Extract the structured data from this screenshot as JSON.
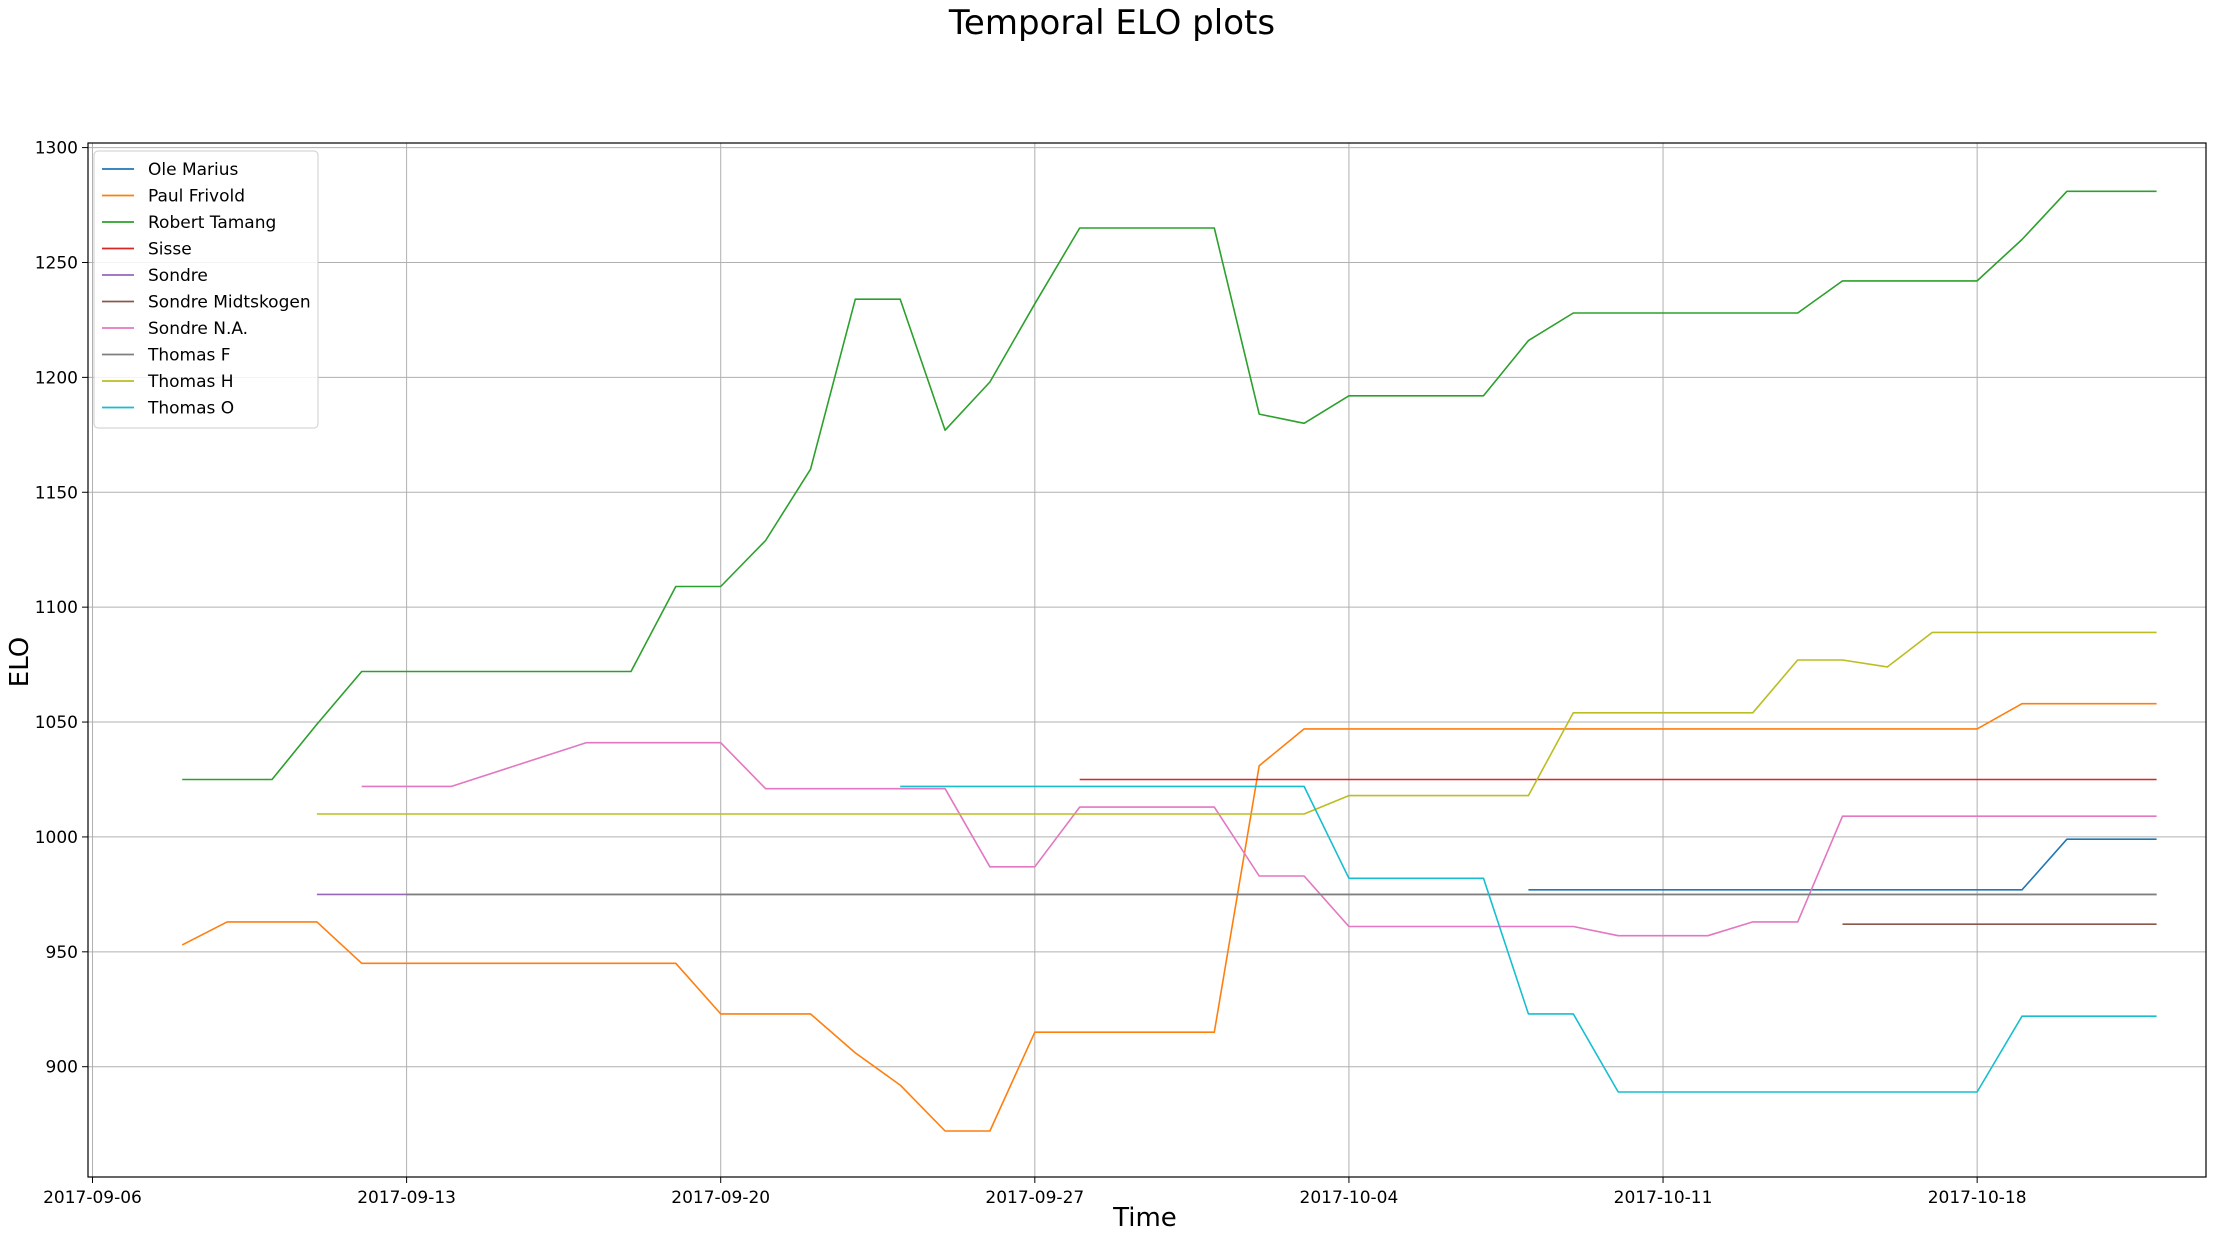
{
  "chart_data": {
    "type": "line",
    "title": "Temporal ELO plots",
    "xlabel": "Time",
    "ylabel": "ELO",
    "x_ticks": [
      "2017-09-06",
      "2017-09-13",
      "2017-09-20",
      "2017-09-27",
      "2017-10-04",
      "2017-10-11",
      "2017-10-18"
    ],
    "x_start": "2017-09-06",
    "xlim_days": [
      -0.1,
      47.1
    ],
    "y_ticks": [
      900,
      950,
      1000,
      1050,
      1100,
      1150,
      1200,
      1250,
      1300
    ],
    "ylim": [
      852,
      1302
    ],
    "grid": true,
    "legend_position": "top-left",
    "series": [
      {
        "name": "Ole Marius",
        "color": "#1f77b4",
        "points": [
          [
            32,
            977
          ],
          [
            43,
            977
          ],
          [
            44,
            999
          ],
          [
            45,
            999
          ],
          [
            46,
            999
          ]
        ]
      },
      {
        "name": "Paul Frivold",
        "color": "#ff7f0e",
        "points": [
          [
            2,
            953
          ],
          [
            3,
            963
          ],
          [
            5,
            963
          ],
          [
            6,
            945
          ],
          [
            13,
            945
          ],
          [
            14,
            923
          ],
          [
            16,
            923
          ],
          [
            17,
            906
          ],
          [
            18,
            892
          ],
          [
            19,
            872
          ],
          [
            20,
            872
          ],
          [
            21,
            915
          ],
          [
            25,
            915
          ],
          [
            26,
            1031
          ],
          [
            27,
            1047
          ],
          [
            41,
            1047
          ],
          [
            42,
            1047
          ],
          [
            43,
            1058
          ],
          [
            46,
            1058
          ]
        ]
      },
      {
        "name": "Robert Tamang",
        "color": "#2ca02c",
        "points": [
          [
            2,
            1025
          ],
          [
            4,
            1025
          ],
          [
            5,
            1049
          ],
          [
            6,
            1072
          ],
          [
            12,
            1072
          ],
          [
            13,
            1109
          ],
          [
            14,
            1109
          ],
          [
            15,
            1129
          ],
          [
            16,
            1160
          ],
          [
            17,
            1234
          ],
          [
            18,
            1234
          ],
          [
            19,
            1177
          ],
          [
            20,
            1198
          ],
          [
            21,
            1232
          ],
          [
            22,
            1265
          ],
          [
            25,
            1265
          ],
          [
            26,
            1184
          ],
          [
            27,
            1180
          ],
          [
            28,
            1192
          ],
          [
            31,
            1192
          ],
          [
            32,
            1216
          ],
          [
            33,
            1228
          ],
          [
            38,
            1228
          ],
          [
            39,
            1242
          ],
          [
            41,
            1242
          ],
          [
            42,
            1242
          ],
          [
            43,
            1260
          ],
          [
            44,
            1281
          ],
          [
            46,
            1281
          ]
        ]
      },
      {
        "name": "Sisse",
        "color": "#d62728",
        "points": [
          [
            22,
            1025
          ],
          [
            46,
            1025
          ]
        ]
      },
      {
        "name": "Sondre",
        "color": "#9467bd",
        "points": [
          [
            5,
            975
          ],
          [
            46,
            975
          ]
        ]
      },
      {
        "name": "Sondre Midtskogen",
        "color": "#8c564b",
        "points": [
          [
            39,
            962
          ],
          [
            46,
            962
          ]
        ]
      },
      {
        "name": "Sondre N.A.",
        "color": "#e377c2",
        "points": [
          [
            6,
            1022
          ],
          [
            8,
            1022
          ],
          [
            11,
            1041
          ],
          [
            14,
            1041
          ],
          [
            15,
            1021
          ],
          [
            19,
            1021
          ],
          [
            20,
            987
          ],
          [
            21,
            987
          ],
          [
            22,
            1013
          ],
          [
            25,
            1013
          ],
          [
            26,
            983
          ],
          [
            27,
            983
          ],
          [
            28,
            961
          ],
          [
            33,
            961
          ],
          [
            34,
            957
          ],
          [
            36,
            957
          ],
          [
            37,
            963
          ],
          [
            38,
            963
          ],
          [
            39,
            1009
          ],
          [
            46,
            1009
          ]
        ]
      },
      {
        "name": "Thomas F",
        "color": "#7f7f7f",
        "points": [
          [
            7,
            975
          ],
          [
            46,
            975
          ]
        ]
      },
      {
        "name": "Thomas H",
        "color": "#bcbd22",
        "points": [
          [
            5,
            1010
          ],
          [
            27,
            1010
          ],
          [
            28,
            1018
          ],
          [
            32,
            1018
          ],
          [
            33,
            1054
          ],
          [
            37,
            1054
          ],
          [
            38,
            1077
          ],
          [
            39,
            1077
          ],
          [
            40,
            1074
          ],
          [
            41,
            1089
          ],
          [
            46,
            1089
          ]
        ]
      },
      {
        "name": "Thomas O",
        "color": "#17becf",
        "points": [
          [
            18,
            1022
          ],
          [
            27,
            1022
          ],
          [
            28,
            982
          ],
          [
            31,
            982
          ],
          [
            32,
            923
          ],
          [
            33,
            923
          ],
          [
            34,
            889
          ],
          [
            41,
            889
          ],
          [
            42,
            889
          ],
          [
            43,
            922
          ],
          [
            46,
            922
          ]
        ]
      }
    ]
  }
}
